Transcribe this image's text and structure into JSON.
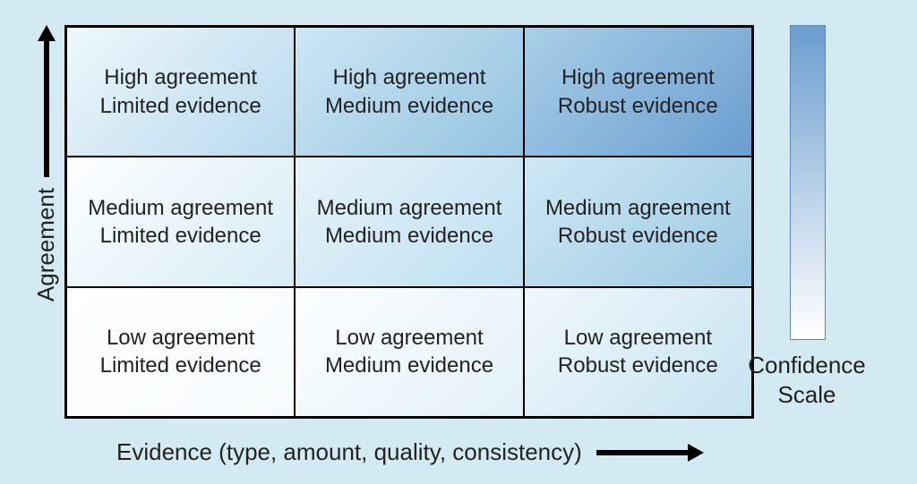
{
  "figure": {
    "type": "matrix-3x3",
    "background_color": "#d3eaf2",
    "border_color": "#000000",
    "cell_border_color": "#000000",
    "font_size_cell": 24,
    "font_size_axis": 26,
    "font_size_legend": 26,
    "gradient_low": "#ffffff",
    "gradient_high": "#6b9dcf",
    "y_axis": {
      "label": "Agreement",
      "arrow": "up"
    },
    "x_axis": {
      "label": "Evidence (type, amount, quality, consistency)",
      "arrow": "right"
    },
    "legend": {
      "label_line1": "Confidence",
      "label_line2": "Scale",
      "gradient_top": "#6b9dcf",
      "gradient_bottom": "#ffffff"
    },
    "cells": [
      [
        {
          "line1": "High agreement",
          "line2": "Limited evidence",
          "bg_from": "#eef8fc",
          "bg_to": "#b7d9ed"
        },
        {
          "line1": "High agreement",
          "line2": "Medium evidence",
          "bg_from": "#cde7f4",
          "bg_to": "#94c2e0"
        },
        {
          "line1": "High agreement",
          "line2": "Robust evidence",
          "bg_from": "#a9cfe8",
          "bg_to": "#6b9dcf"
        }
      ],
      [
        {
          "line1": "Medium agreement",
          "line2": "Limited evidence",
          "bg_from": "#fdfeff",
          "bg_to": "#d6ecf6"
        },
        {
          "line1": "Medium agreement",
          "line2": "Medium evidence",
          "bg_from": "#e6f3fa",
          "bg_to": "#bedff0"
        },
        {
          "line1": "Medium agreement",
          "line2": "Robust evidence",
          "bg_from": "#cfe8f4",
          "bg_to": "#9dc9e3"
        }
      ],
      [
        {
          "line1": "Low agreement",
          "line2": "Limited evidence",
          "bg_from": "#ffffff",
          "bg_to": "#f6fbfd"
        },
        {
          "line1": "Low agreement",
          "line2": "Medium evidence",
          "bg_from": "#fcfeff",
          "bg_to": "#e2f1f9"
        },
        {
          "line1": "Low agreement",
          "line2": "Robust evidence",
          "bg_from": "#f0f8fc",
          "bg_to": "#c7e3f1"
        }
      ]
    ]
  }
}
